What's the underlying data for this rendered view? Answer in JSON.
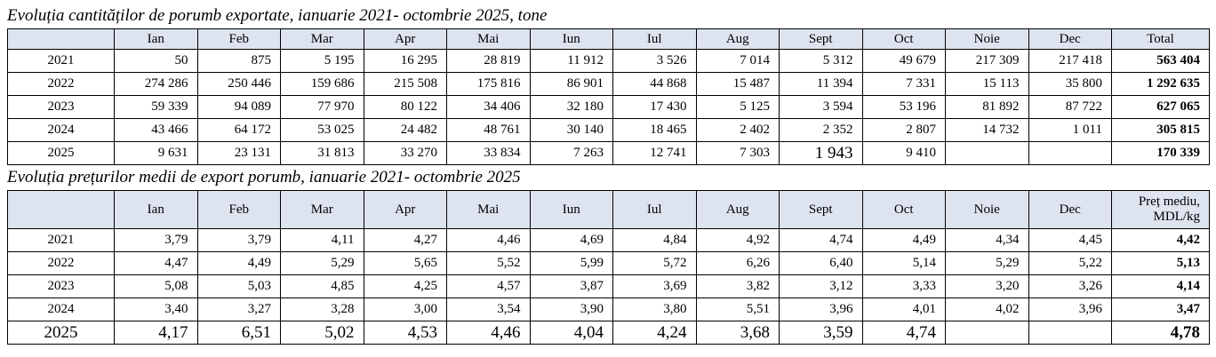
{
  "table1": {
    "title": "Evoluția cantităților de porumb exportate, ianuarie 2021- octombrie 2025,  tone",
    "header": [
      null,
      "Ian",
      "Feb",
      "Mar",
      "Apr",
      "Mai",
      "Iun",
      "Iul",
      "Aug",
      "Sept",
      "Oct",
      "Noie",
      "Dec",
      "Total"
    ],
    "rows": [
      [
        "2021",
        "50",
        "875",
        "5 195",
        "16 295",
        "28 819",
        "11 912",
        "3 526",
        "7 014",
        "5 312",
        "49 679",
        "217 309",
        "217 418",
        "563 404"
      ],
      [
        "2022",
        "274 286",
        "250 446",
        "159 686",
        "215 508",
        "175 816",
        "86 901",
        "44 868",
        "15 487",
        "11 394",
        "7 331",
        "15 113",
        "35 800",
        "1 292 635"
      ],
      [
        "2023",
        "59 339",
        "94 089",
        "77 970",
        "80 122",
        "34 406",
        "32 180",
        "17 430",
        "5 125",
        "3 594",
        "53 196",
        "81 892",
        "87 722",
        "627 065"
      ],
      [
        "2024",
        "43 466",
        "64 172",
        "53 025",
        "24 482",
        "48 761",
        "30 140",
        "18 465",
        "2 402",
        "2 352",
        "2 807",
        "14 732",
        "1 011",
        "305 815"
      ],
      [
        "2025",
        "9 631",
        "23 131",
        "31 813",
        "33 270",
        "33 834",
        "7 263",
        "12 741",
        "7 303",
        "1 943",
        "9 410",
        null,
        null,
        "170 339"
      ]
    ]
  },
  "table2": {
    "title": "Evoluția prețurilor medii de export porumb, ianuarie 2021- octombrie 2025",
    "header": [
      null,
      "Ian",
      "Feb",
      "Mar",
      "Apr",
      "Mai",
      "Iun",
      "Iul",
      "Aug",
      "Sept",
      "Oct",
      "Noie",
      "Dec",
      "Preț mediu,\nMDL/kg"
    ],
    "rows": [
      [
        "2021",
        "3,79",
        "3,79",
        "4,11",
        "4,27",
        "4,46",
        "4,69",
        "4,84",
        "4,92",
        "4,74",
        "4,49",
        "4,34",
        "4,45",
        "4,42"
      ],
      [
        "2022",
        "4,47",
        "4,49",
        "5,29",
        "5,65",
        "5,52",
        "5,99",
        "5,72",
        "6,26",
        "6,40",
        "5,14",
        "5,29",
        "5,22",
        "5,13"
      ],
      [
        "2023",
        "5,08",
        "5,03",
        "4,85",
        "4,25",
        "4,57",
        "3,87",
        "3,69",
        "3,82",
        "3,12",
        "3,33",
        "3,20",
        "3,26",
        "4,14"
      ],
      [
        "2024",
        "3,40",
        "3,27",
        "3,28",
        "3,00",
        "3,54",
        "3,90",
        "3,80",
        "5,51",
        "3,96",
        "4,01",
        "4,02",
        "3,96",
        "3,47"
      ],
      [
        "2025",
        "4,17",
        "6,51",
        "5,02",
        "4,53",
        "4,46",
        "4,04",
        "4,24",
        "3,68",
        "3,59",
        "4,74",
        null,
        null,
        "4,78"
      ]
    ]
  }
}
